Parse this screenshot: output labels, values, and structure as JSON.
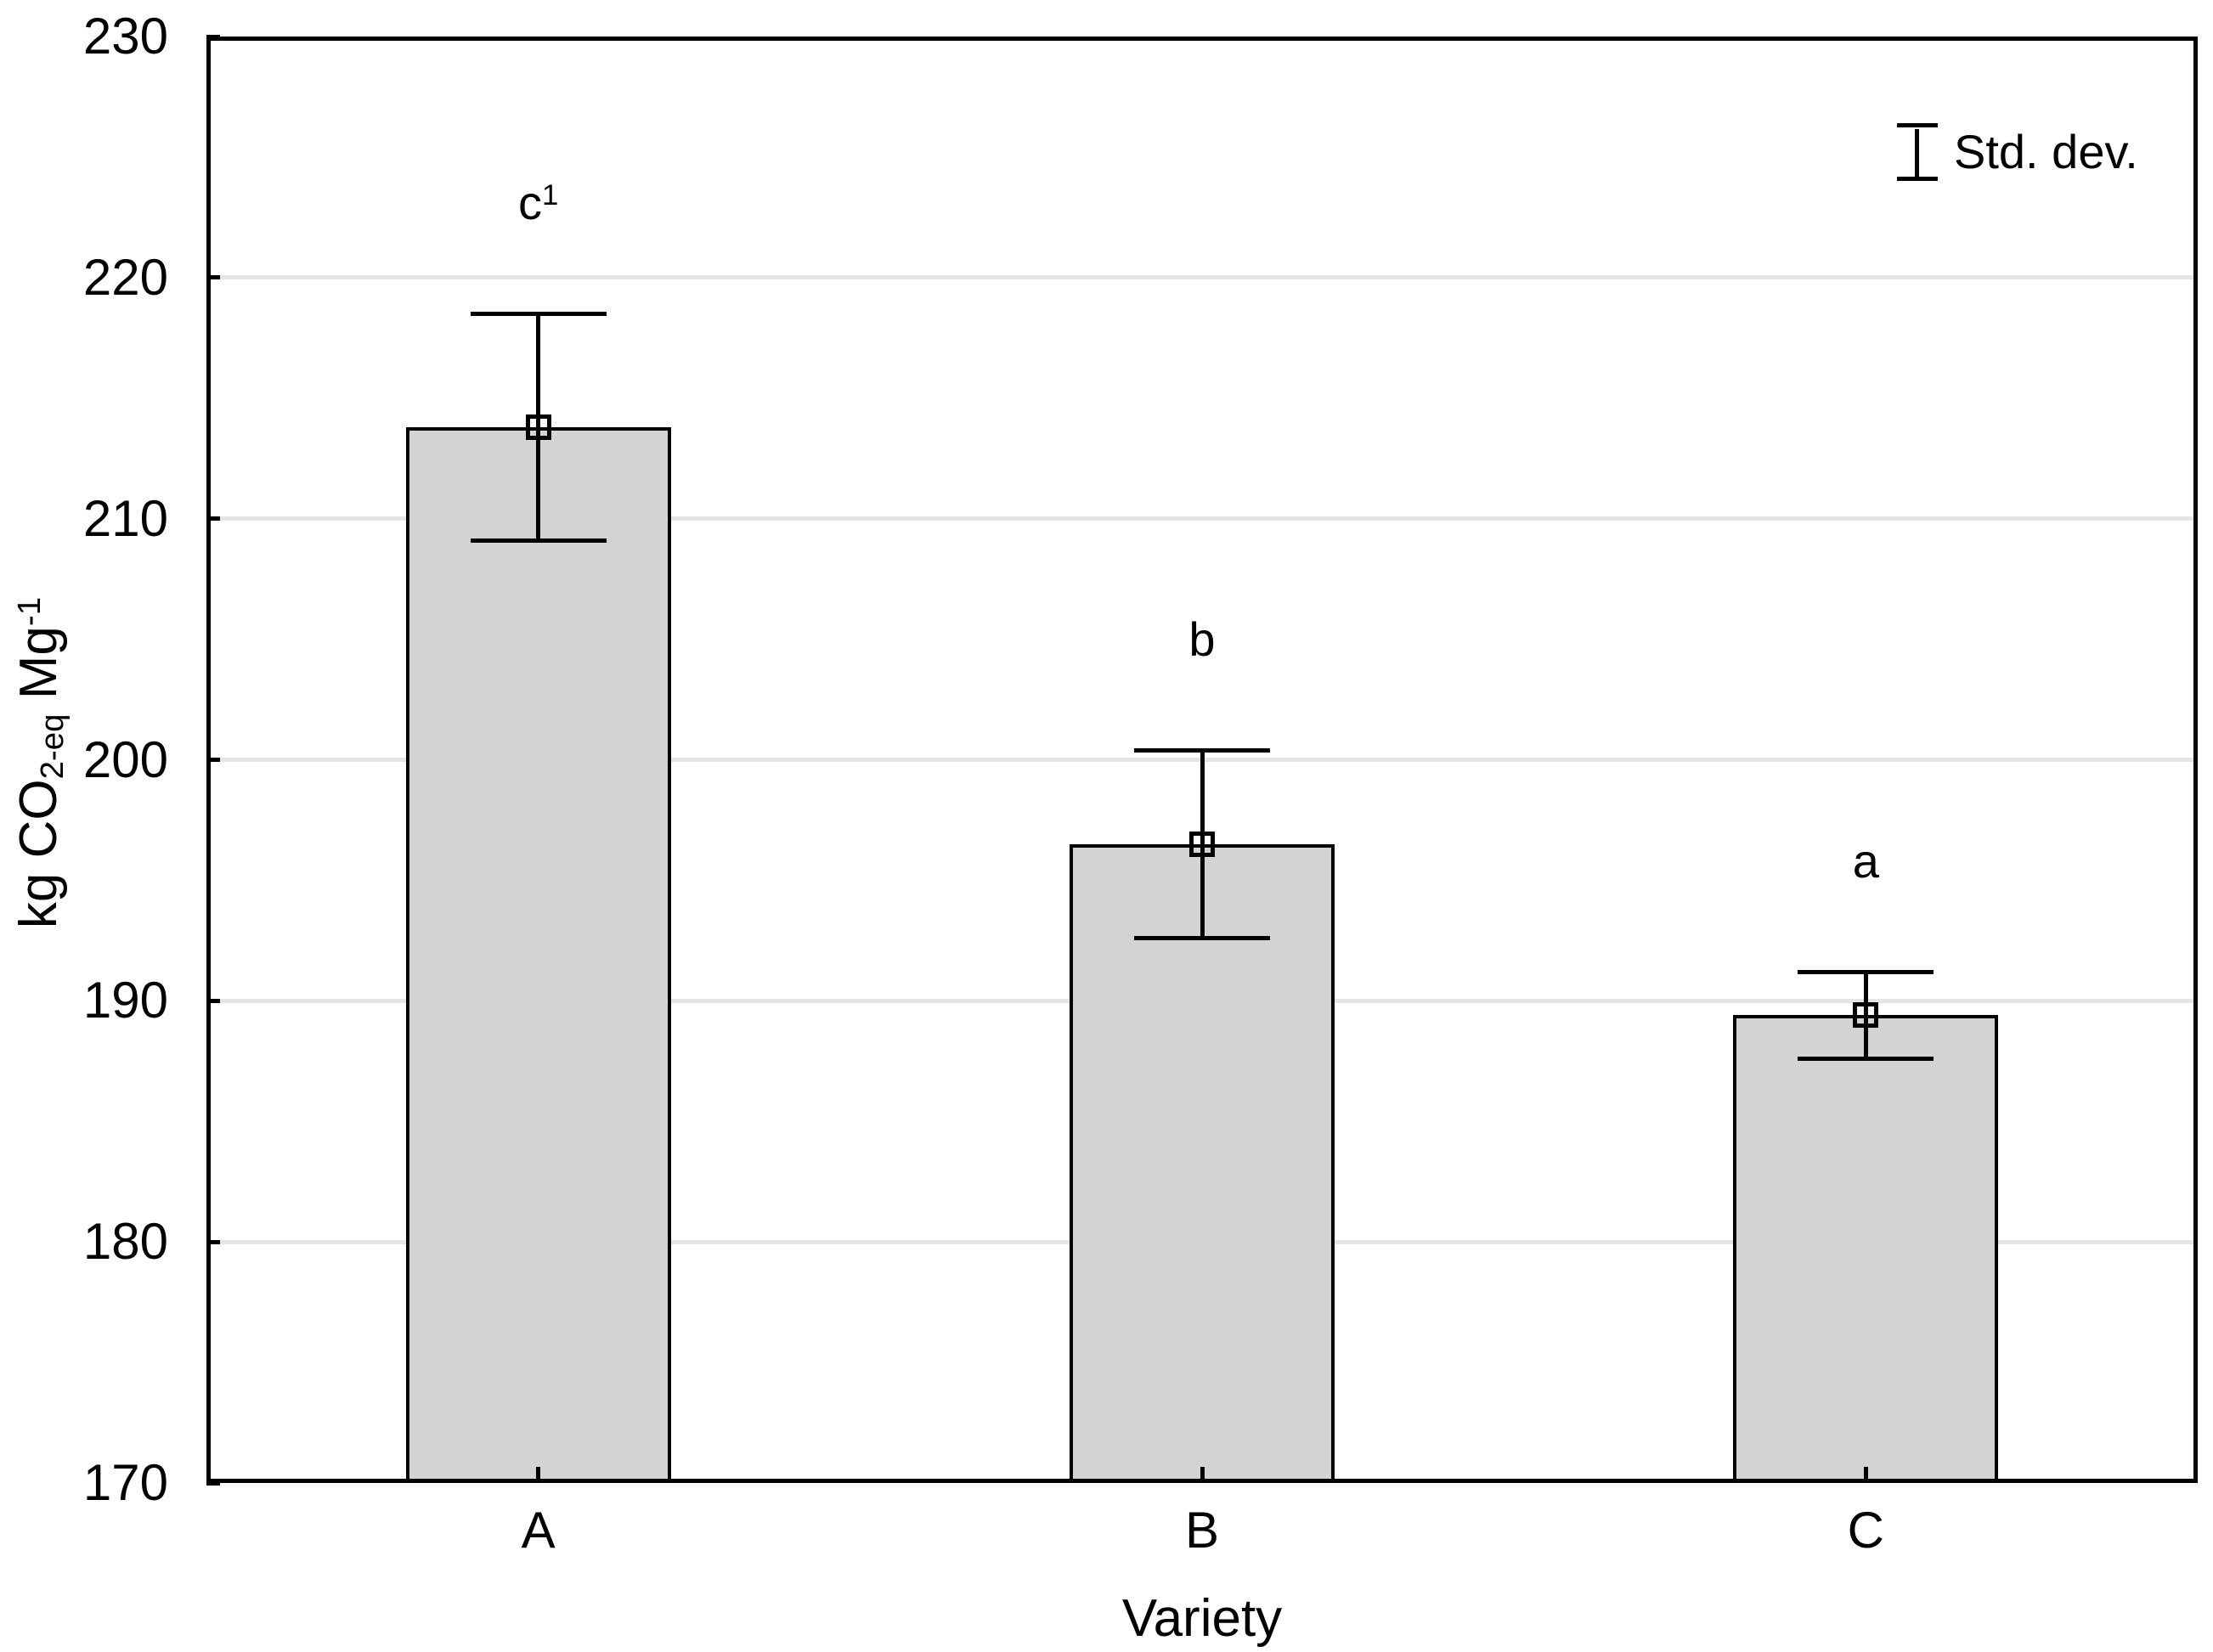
{
  "chart_data": {
    "type": "bar",
    "categories": [
      "A",
      "B",
      "C"
    ],
    "values": [
      213.8,
      196.5,
      189.4
    ],
    "std_dev": [
      4.7,
      3.9,
      1.8
    ],
    "error_bar_meaning": "mean ± standard deviation",
    "sig_letters": [
      {
        "base": "c",
        "sup": "1"
      },
      {
        "base": "b",
        "sup": ""
      },
      {
        "base": "a",
        "sup": ""
      }
    ],
    "title": "",
    "xlabel": "Variety",
    "ylabel": "kg CO2-eq Mg-1",
    "ylabel_parts": {
      "main1": "kg CO",
      "sub": "2-eq",
      "main2": " Mg",
      "sup": "-1"
    },
    "ylim": [
      170,
      230
    ],
    "yticks": [
      170,
      180,
      190,
      200,
      210,
      220,
      230
    ],
    "gridlines": [
      180,
      190,
      200,
      210,
      220
    ],
    "grid_on": true,
    "legend": {
      "label": "Std. dev.",
      "position": "top-right",
      "icon": "errorbar-icon"
    },
    "colors": {
      "bar_fill": "#d3d3d3",
      "bar_border": "#000000",
      "grid_color": "#e5e5e5",
      "frame_color": "#000000",
      "background": "#ffffff"
    }
  }
}
